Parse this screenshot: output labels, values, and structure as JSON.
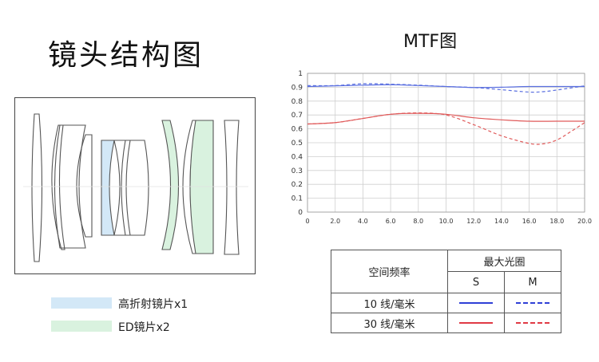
{
  "lens_section": {
    "title": "镜头结构图",
    "legend": [
      {
        "label": "高折射镜片x1",
        "color": "#d3e8f7"
      },
      {
        "label": "ED镜片x2",
        "color": "#d9f2df"
      }
    ]
  },
  "mtf_section": {
    "title": "MTF图",
    "table": {
      "col_header_main": "空间频率",
      "col_header_group": "最大光圈",
      "sub_headers": [
        "S",
        "M"
      ],
      "rows": [
        {
          "label": "10 线/毫米",
          "color": "#2f3fd6"
        },
        {
          "label": "30 线/毫米",
          "color": "#e03a45"
        }
      ]
    }
  },
  "chart_data": {
    "type": "line",
    "title": "MTF图",
    "xlabel": "",
    "ylabel": "",
    "xlim": [
      0,
      20
    ],
    "ylim": [
      0,
      1
    ],
    "x_ticks": [
      "0",
      "2.0",
      "4.0",
      "6.0",
      "8.0",
      "10.0",
      "12.0",
      "14.0",
      "16.0",
      "18.0",
      "20.0"
    ],
    "y_ticks": [
      "0",
      "0.1",
      "0.2",
      "0.3",
      "0.4",
      "0.5",
      "0.6",
      "0.7",
      "0.8",
      "0.9",
      "1"
    ],
    "grid": true,
    "series": [
      {
        "name": "10 线/毫米 S",
        "color": "#5a6fe0",
        "dashed": false,
        "points": [
          [
            0,
            0.905
          ],
          [
            2,
            0.91
          ],
          [
            4,
            0.915
          ],
          [
            6,
            0.918
          ],
          [
            8,
            0.912
          ],
          [
            10,
            0.905
          ],
          [
            12,
            0.898
          ],
          [
            14,
            0.9
          ],
          [
            16,
            0.905
          ],
          [
            18,
            0.905
          ],
          [
            20,
            0.905
          ]
        ]
      },
      {
        "name": "10 线/毫米 M",
        "color": "#5a6fe0",
        "dashed": true,
        "points": [
          [
            0,
            0.912
          ],
          [
            2,
            0.912
          ],
          [
            4,
            0.925
          ],
          [
            6,
            0.922
          ],
          [
            8,
            0.915
          ],
          [
            10,
            0.905
          ],
          [
            12,
            0.898
          ],
          [
            14,
            0.882
          ],
          [
            16,
            0.865
          ],
          [
            17,
            0.868
          ],
          [
            18,
            0.88
          ],
          [
            20,
            0.91
          ]
        ]
      },
      {
        "name": "30 线/毫米 S",
        "color": "#e05a5a",
        "dashed": false,
        "points": [
          [
            0,
            0.635
          ],
          [
            2,
            0.645
          ],
          [
            4,
            0.675
          ],
          [
            6,
            0.705
          ],
          [
            8,
            0.712
          ],
          [
            10,
            0.705
          ],
          [
            12,
            0.68
          ],
          [
            14,
            0.665
          ],
          [
            16,
            0.655
          ],
          [
            18,
            0.655
          ],
          [
            20,
            0.655
          ]
        ]
      },
      {
        "name": "30 线/毫米 M",
        "color": "#e05a5a",
        "dashed": true,
        "points": [
          [
            0,
            0.635
          ],
          [
            2,
            0.645
          ],
          [
            4,
            0.675
          ],
          [
            6,
            0.705
          ],
          [
            8,
            0.715
          ],
          [
            10,
            0.7
          ],
          [
            12,
            0.63
          ],
          [
            14,
            0.55
          ],
          [
            16,
            0.495
          ],
          [
            17,
            0.492
          ],
          [
            18,
            0.52
          ],
          [
            19,
            0.58
          ],
          [
            20,
            0.645
          ]
        ]
      }
    ]
  }
}
